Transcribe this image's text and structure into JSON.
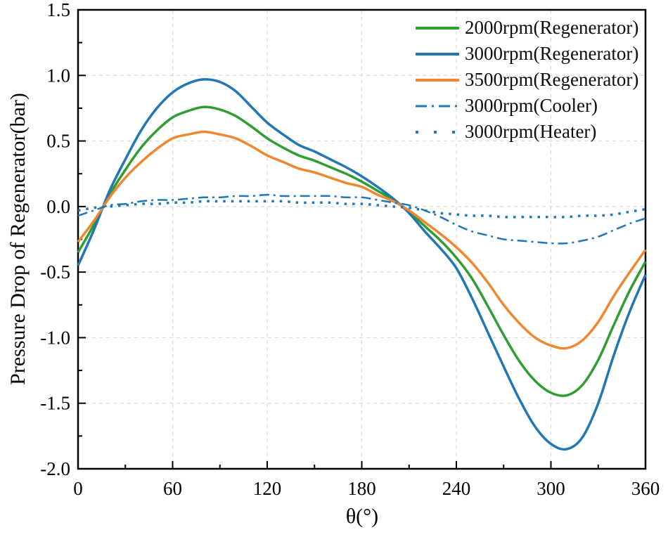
{
  "figure": {
    "background": "#ffffff",
    "axis_color": "#000000",
    "grid_color": "#d9d9d9"
  },
  "chart_data": {
    "type": "line",
    "title": "",
    "xlabel": "θ(°)",
    "ylabel": "Pressure Drop of Regenerator(bar)",
    "xlim": [
      0,
      360
    ],
    "ylim": [
      -2.0,
      1.5
    ],
    "grid": true,
    "legend_position": "top-right-inside",
    "x_tick_values": [
      0,
      60,
      120,
      180,
      240,
      300,
      360
    ],
    "x_tick_labels": [
      "0",
      "60",
      "120",
      "180",
      "240",
      "300",
      "360"
    ],
    "x_minor_step": 30,
    "y_tick_values": [
      -2.0,
      -1.5,
      -1.0,
      -0.5,
      0.0,
      0.5,
      1.0,
      1.5
    ],
    "y_tick_labels": [
      "-2.0",
      "-1.5",
      "-1.0",
      "-0.5",
      "0.0",
      "0.5",
      "1.0",
      "1.5"
    ],
    "y_minor_step": 0.25,
    "x": [
      0,
      10,
      20,
      30,
      40,
      50,
      60,
      70,
      80,
      90,
      100,
      110,
      120,
      130,
      140,
      150,
      160,
      170,
      180,
      190,
      200,
      210,
      220,
      230,
      240,
      250,
      260,
      270,
      280,
      290,
      300,
      310,
      320,
      330,
      340,
      350,
      360
    ],
    "series": [
      {
        "label": "2000rpm(Regenerator)",
        "color": "#2e9e30",
        "style": "solid",
        "width": 3.5,
        "values": [
          -0.35,
          -0.14,
          0.09,
          0.28,
          0.45,
          0.58,
          0.68,
          0.73,
          0.76,
          0.74,
          0.69,
          0.61,
          0.52,
          0.45,
          0.39,
          0.35,
          0.3,
          0.25,
          0.19,
          0.12,
          0.05,
          -0.04,
          -0.15,
          -0.26,
          -0.39,
          -0.55,
          -0.76,
          -0.98,
          -1.18,
          -1.33,
          -1.42,
          -1.44,
          -1.36,
          -1.17,
          -0.9,
          -0.64,
          -0.42
        ]
      },
      {
        "label": "3000rpm(Regenerator)",
        "color": "#1f77b4",
        "style": "solid",
        "width": 3.5,
        "values": [
          -0.45,
          -0.18,
          0.12,
          0.36,
          0.58,
          0.75,
          0.87,
          0.94,
          0.97,
          0.95,
          0.88,
          0.76,
          0.64,
          0.55,
          0.47,
          0.42,
          0.36,
          0.3,
          0.23,
          0.15,
          0.06,
          -0.05,
          -0.19,
          -0.32,
          -0.47,
          -0.7,
          -0.96,
          -1.22,
          -1.47,
          -1.68,
          -1.81,
          -1.85,
          -1.76,
          -1.5,
          -1.13,
          -0.8,
          -0.52
        ]
      },
      {
        "label": "3500rpm(Regenerator)",
        "color": "#f0862d",
        "style": "solid",
        "width": 3.5,
        "values": [
          -0.27,
          -0.11,
          0.07,
          0.22,
          0.34,
          0.44,
          0.52,
          0.55,
          0.57,
          0.55,
          0.52,
          0.46,
          0.39,
          0.34,
          0.29,
          0.26,
          0.22,
          0.18,
          0.15,
          0.09,
          0.04,
          -0.03,
          -0.12,
          -0.21,
          -0.31,
          -0.43,
          -0.58,
          -0.75,
          -0.89,
          -1.0,
          -1.06,
          -1.08,
          -1.02,
          -0.88,
          -0.68,
          -0.5,
          -0.33
        ]
      },
      {
        "label": "3000rpm(Cooler)",
        "color": "#1f77b4",
        "style": "dashdot",
        "width": 2.5,
        "values": [
          -0.07,
          -0.03,
          0.01,
          0.02,
          0.04,
          0.05,
          0.05,
          0.06,
          0.07,
          0.07,
          0.08,
          0.08,
          0.09,
          0.08,
          0.08,
          0.08,
          0.08,
          0.07,
          0.07,
          0.05,
          0.03,
          0.01,
          -0.03,
          -0.08,
          -0.14,
          -0.19,
          -0.22,
          -0.25,
          -0.26,
          -0.27,
          -0.28,
          -0.28,
          -0.26,
          -0.23,
          -0.18,
          -0.13,
          -0.09
        ]
      },
      {
        "label": "3000rpm(Heater)",
        "color": "#1f77b4",
        "style": "dotted",
        "width": 3.5,
        "values": [
          -0.03,
          -0.01,
          0.0,
          0.01,
          0.02,
          0.02,
          0.03,
          0.03,
          0.04,
          0.04,
          0.04,
          0.04,
          0.04,
          0.04,
          0.03,
          0.03,
          0.03,
          0.02,
          0.02,
          0.01,
          0.0,
          -0.01,
          -0.03,
          -0.05,
          -0.06,
          -0.07,
          -0.07,
          -0.08,
          -0.08,
          -0.08,
          -0.08,
          -0.08,
          -0.07,
          -0.07,
          -0.06,
          -0.04,
          -0.02
        ]
      }
    ]
  }
}
